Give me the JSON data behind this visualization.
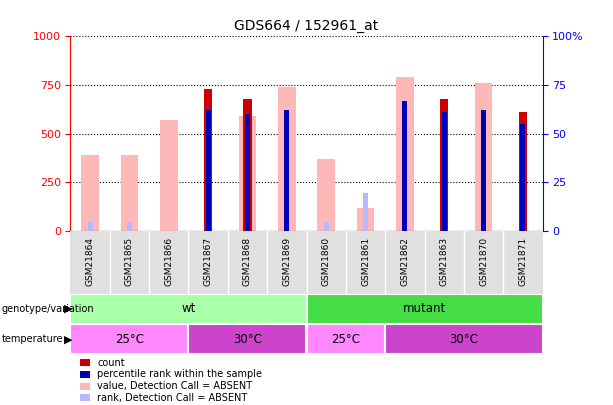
{
  "title": "GDS664 / 152961_at",
  "samples": [
    "GSM21864",
    "GSM21865",
    "GSM21866",
    "GSM21867",
    "GSM21868",
    "GSM21869",
    "GSM21860",
    "GSM21861",
    "GSM21862",
    "GSM21863",
    "GSM21870",
    "GSM21871"
  ],
  "count": [
    0,
    0,
    0,
    730,
    680,
    0,
    0,
    0,
    0,
    680,
    0,
    610
  ],
  "percentile_rank": [
    0,
    0,
    0,
    62,
    60,
    62,
    0,
    0,
    67,
    61,
    62,
    55
  ],
  "value_absent": [
    390,
    390,
    570,
    0,
    590,
    740,
    370,
    115,
    790,
    0,
    760,
    0
  ],
  "rank_absent": [
    43,
    43,
    0,
    0,
    0,
    65,
    43,
    195,
    0,
    0,
    0,
    0
  ],
  "ylim_left": [
    0,
    1000
  ],
  "ylim_right": [
    0,
    100
  ],
  "yticks_left": [
    0,
    250,
    500,
    750,
    1000
  ],
  "yticks_right": [
    0,
    25,
    50,
    75,
    100
  ],
  "color_count": "#cc0000",
  "color_percentile": "#0000bb",
  "color_value_absent": "#ffb8b8",
  "color_rank_absent": "#b8b8ff",
  "genotype_groups": [
    {
      "label": "wt",
      "color": "#aaffaa",
      "start": 0,
      "end": 5
    },
    {
      "label": "mutant",
      "color": "#44dd44",
      "start": 6,
      "end": 11
    }
  ],
  "temperature_groups": [
    {
      "label": "25°C",
      "color": "#ff88ff",
      "start": 0,
      "end": 2
    },
    {
      "label": "30°C",
      "color": "#cc44cc",
      "start": 3,
      "end": 5
    },
    {
      "label": "25°C",
      "color": "#ff88ff",
      "start": 6,
      "end": 7
    },
    {
      "label": "30°C",
      "color": "#cc44cc",
      "start": 8,
      "end": 11
    }
  ],
  "legend_items": [
    {
      "label": "count",
      "color": "#cc0000"
    },
    {
      "label": "percentile rank within the sample",
      "color": "#0000bb"
    },
    {
      "label": "value, Detection Call = ABSENT",
      "color": "#ffb8b8"
    },
    {
      "label": "rank, Detection Call = ABSENT",
      "color": "#b8b8ff"
    }
  ]
}
